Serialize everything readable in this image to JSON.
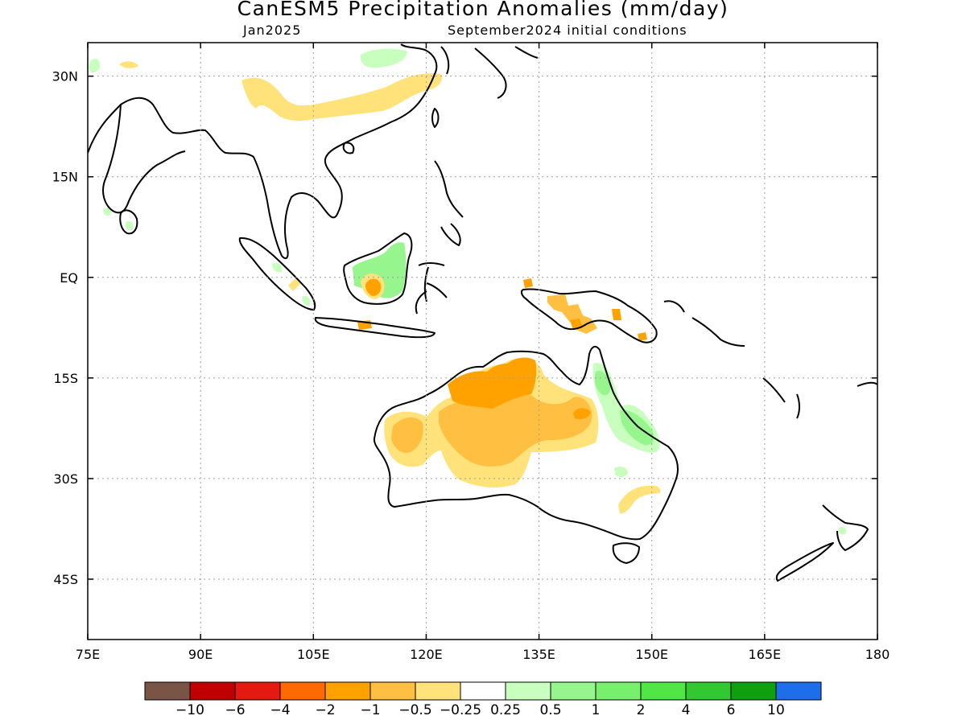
{
  "title": "CanESM5 Precipitation Anomalies (mm/day)",
  "valid_month": "Jan2025",
  "init_conditions": "September2024 initial conditions",
  "map": {
    "lon_range": [
      75,
      180
    ],
    "lat_range": [
      -54,
      35
    ],
    "lon_ticks": [
      {
        "lon": 75,
        "label": "75E"
      },
      {
        "lon": 90,
        "label": "90E"
      },
      {
        "lon": 105,
        "label": "105E"
      },
      {
        "lon": 120,
        "label": "120E"
      },
      {
        "lon": 135,
        "label": "135E"
      },
      {
        "lon": 150,
        "label": "150E"
      },
      {
        "lon": 165,
        "label": "165E"
      },
      {
        "lon": 180,
        "label": "180"
      }
    ],
    "lat_ticks": [
      {
        "lat": 30,
        "label": "30N"
      },
      {
        "lat": 15,
        "label": "15N"
      },
      {
        "lat": 0,
        "label": "EQ"
      },
      {
        "lat": -15,
        "label": "15S"
      },
      {
        "lat": -30,
        "label": "30S"
      },
      {
        "lat": -45,
        "label": "45S"
      }
    ],
    "grid": "dotted"
  },
  "colorbar": {
    "colors": [
      "#7a5447",
      "#c00000",
      "#e41a10",
      "#ff6a00",
      "#ffa200",
      "#ffbf40",
      "#ffe27a",
      "#ffffff",
      "#c8ffbe",
      "#96f58c",
      "#78f06e",
      "#50e646",
      "#32c832",
      "#0fa00f",
      "#1e6eeb"
    ],
    "labels": [
      "−10",
      "−6",
      "−4",
      "−2",
      "−1",
      "−0.5",
      "−0.25",
      "0.25",
      "0.5",
      "1",
      "2",
      "4",
      "6",
      "10"
    ]
  },
  "colors": {
    "dry_weak": "#ffe27a",
    "dry_mod": "#ffbf40",
    "dry_strong": "#ffa200",
    "wet_weak": "#c8ffbe",
    "wet_mod": "#96f58c",
    "wet_strong": "#50e646"
  }
}
